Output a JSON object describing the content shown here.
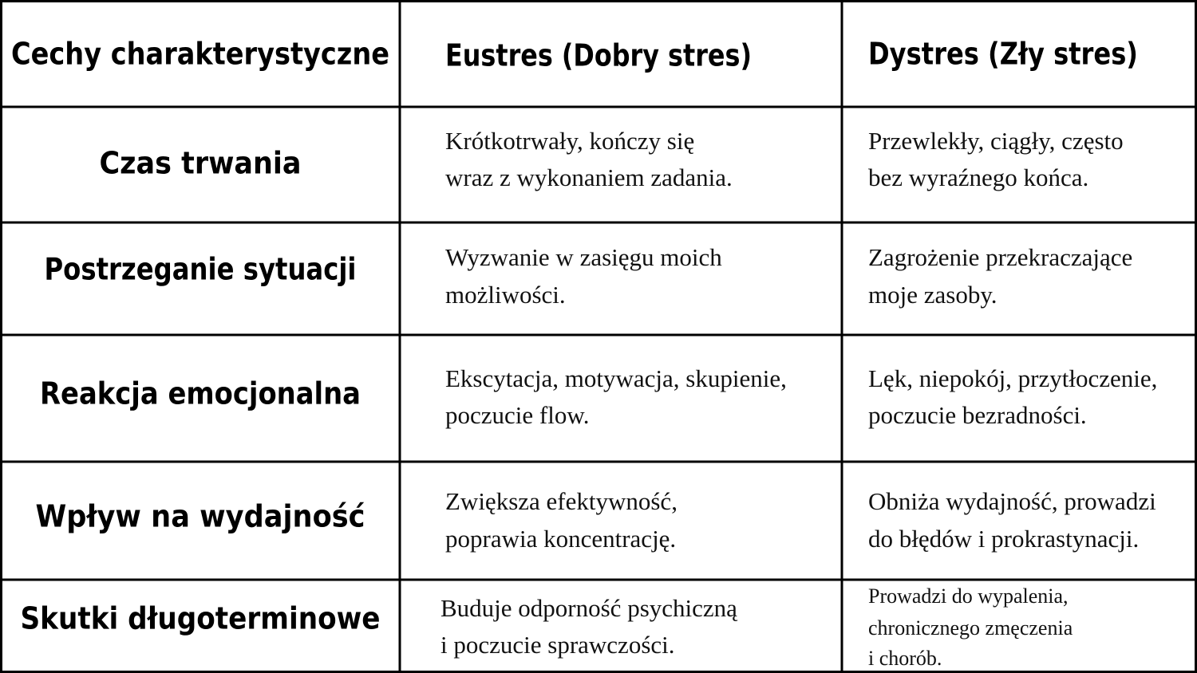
{
  "header": [
    "Cechy charakterystyczne",
    "Eustres (Dobry stres)",
    "Dystres (Zły stres)"
  ],
  "rows": [
    {
      "label": "Czas trwania",
      "eustres": [
        "Krótkotrwały, kończy się",
        "wraz z wykonaniem zadania."
      ],
      "dystres": [
        "Przewlekły, ciągły, często",
        "bez wyraźnego końca."
      ]
    },
    {
      "label": "Postrzeganie sytuacji",
      "eustres": [
        "Wyzwanie w zasięgu moich",
        "możliwości."
      ],
      "dystres": [
        "Zagrożenie przekraczające",
        "moje zasoby."
      ]
    },
    {
      "label": "Reakcja emocjonalna",
      "eustres": [
        "Ekscytacja, motywacja, skupienie,",
        "poczucie flow."
      ],
      "dystres": [
        "Lęk, niepokój, przytłoczenie,",
        "poczucie bezradności."
      ]
    },
    {
      "label": "Wpływ na wydajność",
      "eustres": [
        "Zwiększa efektywność,",
        "poprawia koncentrację."
      ],
      "dystres": [
        "Obniża wydajność, prowadzi",
        "do błędów i prokrastynacji."
      ]
    },
    {
      "label": "Skutki długoterminowe",
      "eustres": [
        "Buduje odporność psychiczną",
        "i poczucie sprawczości."
      ],
      "dystres": [
        "Prowadzi do wypalenia,",
        "chronicznego zmęczenia",
        "i chorób."
      ]
    }
  ]
}
